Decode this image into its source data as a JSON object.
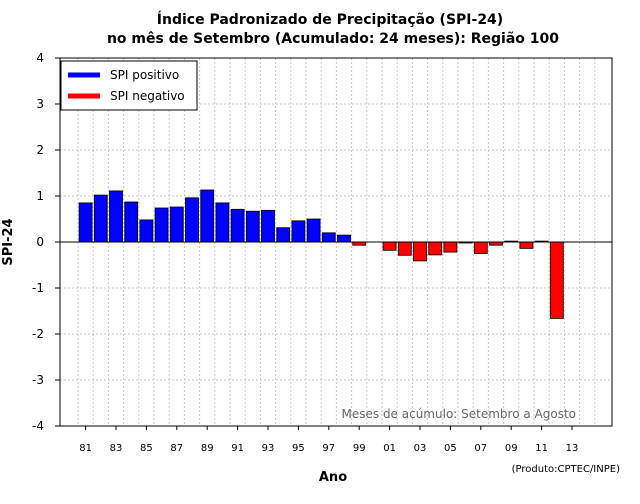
{
  "chart_data": {
    "type": "bar",
    "title": "Índice Padronizado de Precipitação (SPI-24)",
    "subtitle": "no mês de Setembro (Acumulado: 24 meses): Região 100",
    "xlabel": "Ano",
    "ylabel": "SPI-24",
    "ylim": [
      -4,
      4
    ],
    "yticks": [
      -4,
      -3,
      -2,
      -1,
      0,
      1,
      2,
      3,
      4
    ],
    "xtick_labels": [
      "81",
      "83",
      "85",
      "87",
      "89",
      "91",
      "93",
      "95",
      "97",
      "99",
      "01",
      "03",
      "05",
      "07",
      "09",
      "11",
      "13"
    ],
    "grid": true,
    "legend": {
      "position": "top-left",
      "entries": [
        {
          "label": "SPI positivo",
          "color": "#0000ff"
        },
        {
          "label": "SPI negativo",
          "color": "#ff0000"
        }
      ]
    },
    "annotation": "Meses de acúmulo: Setembro a Agosto",
    "credit": "(Produto:CPTEC/INPE)",
    "colors": {
      "positive": "#0000ff",
      "negative": "#ff0000",
      "grid": "#c8c8c8",
      "annotation": "#666666"
    },
    "categories": [
      "1981",
      "1982",
      "1983",
      "1984",
      "1985",
      "1986",
      "1987",
      "1988",
      "1989",
      "1990",
      "1991",
      "1992",
      "1993",
      "1994",
      "1995",
      "1996",
      "1997",
      "1998",
      "1999",
      "2000",
      "2001",
      "2002",
      "2003",
      "2004",
      "2005",
      "2006",
      "2007",
      "2008",
      "2009",
      "2010",
      "2011",
      "2012",
      "2013",
      "2014"
    ],
    "values": [
      0.85,
      1.02,
      1.11,
      0.87,
      0.48,
      0.74,
      0.76,
      0.96,
      1.13,
      0.85,
      0.71,
      0.67,
      0.69,
      0.31,
      0.46,
      0.5,
      0.2,
      0.15,
      -0.07,
      0.0,
      -0.18,
      -0.29,
      -0.41,
      -0.28,
      -0.22,
      -0.01,
      -0.25,
      -0.07,
      0.02,
      -0.14,
      0.02,
      -1.66,
      0.0,
      0.0
    ]
  }
}
